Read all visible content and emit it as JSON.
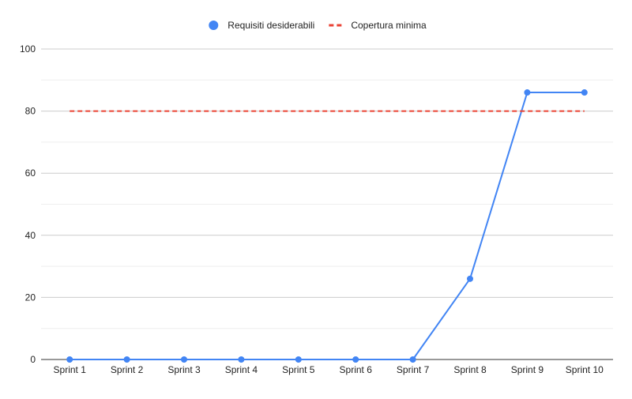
{
  "chart_data": {
    "type": "line",
    "title": "",
    "xlabel": "",
    "ylabel": "",
    "categories": [
      "Sprint 1",
      "Sprint 2",
      "Sprint 3",
      "Sprint 4",
      "Sprint 5",
      "Sprint 6",
      "Sprint 7",
      "Sprint 8",
      "Sprint 9",
      "Sprint 10"
    ],
    "series": [
      {
        "name": "Requisiti desiderabili",
        "style": "solid-line-with-markers",
        "color": "#4285f4",
        "values": [
          0,
          0,
          0,
          0,
          0,
          0,
          0,
          26,
          86,
          86
        ]
      },
      {
        "name": "Copertura minima",
        "style": "dashed-line",
        "color": "#ea4335",
        "values": [
          80,
          80,
          80,
          80,
          80,
          80,
          80,
          80,
          80,
          80
        ]
      }
    ],
    "ylim": [
      0,
      100
    ],
    "yticks": [
      0,
      20,
      40,
      60,
      80,
      100
    ],
    "grid": true,
    "minor_grid": true,
    "legend_position": "top-center",
    "colors": {
      "grid_major": "#cccccc",
      "grid_minor": "#eeeeee",
      "axis": "#333333"
    }
  }
}
